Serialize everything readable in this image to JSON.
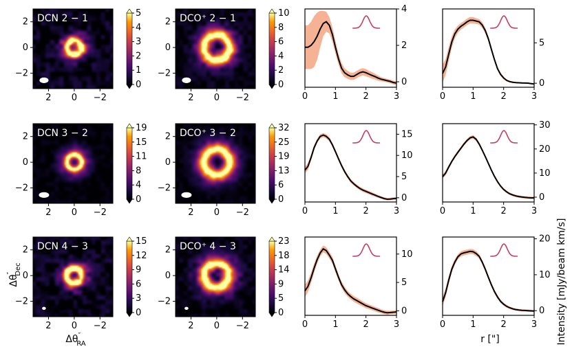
{
  "figure": {
    "x_label_radial": "r [\"]",
    "y_label_radial": "Intensity [mJy/beam km/s]"
  },
  "colors": {
    "background": "#000004",
    "curve": "#000000",
    "band": "#f4a582",
    "line_profile": "#c23e63"
  },
  "chart_data": [
    {
      "type": "heatmap",
      "molecule": "DCN",
      "transition": "2 − 1",
      "title": "DCN 2 − 1",
      "xlabel": "",
      "ylabel": "",
      "xlim": [
        3.2,
        -3.0
      ],
      "ylim": [
        -3.2,
        3.0
      ],
      "xticks": [
        "2",
        "0",
        "−2"
      ],
      "yticks": [
        "2",
        "0",
        "−2"
      ],
      "colorbar": {
        "ticks": [
          "0",
          "1",
          "2",
          "3",
          "4",
          "5"
        ],
        "min": 0,
        "max": 5
      },
      "structure": {
        "ring_radius": 0.55,
        "ring_width": 0.28,
        "disk_extent": 1.3,
        "hole_depth": 0.25,
        "noise": 0.32
      },
      "beam": {
        "major": 0.35,
        "minor": 0.22
      }
    },
    {
      "type": "heatmap",
      "molecule": "DCO+",
      "transition": "2 − 1",
      "title": "DCO⁺ 2 − 1",
      "xlabel": "",
      "ylabel": "",
      "xlim": [
        3.2,
        -3.0
      ],
      "ylim": [
        -3.2,
        3.0
      ],
      "xticks": [
        "2",
        "0",
        "−2"
      ],
      "yticks": [
        "2",
        "0",
        "−2"
      ],
      "colorbar": {
        "ticks": [
          "0",
          "2",
          "4",
          "6",
          "8",
          "10"
        ],
        "min": 0,
        "max": 10
      },
      "structure": {
        "ring_radius": 1.0,
        "ring_width": 0.42,
        "disk_extent": 1.9,
        "hole_depth": 0.9,
        "noise": 0.2
      },
      "beam": {
        "major": 0.35,
        "minor": 0.22
      }
    },
    {
      "type": "line",
      "molecule": "DCN",
      "transition": "2 − 1",
      "xlabel": "",
      "ylabel": "",
      "xlim": [
        0,
        3
      ],
      "ylim": [
        -0.3,
        4.0
      ],
      "xticks": [
        "0",
        "1",
        "2",
        "3"
      ],
      "yticks": [
        "0",
        "2",
        "4"
      ],
      "x": [
        0,
        0.1,
        0.2,
        0.3,
        0.4,
        0.5,
        0.6,
        0.7,
        0.8,
        0.9,
        1.0,
        1.1,
        1.2,
        1.3,
        1.4,
        1.5,
        1.6,
        1.7,
        1.8,
        1.9,
        2.0,
        2.1,
        2.2,
        2.3,
        2.4,
        2.5,
        2.6,
        2.7,
        2.8,
        2.9,
        3.0
      ],
      "y": [
        1.9,
        1.9,
        2.0,
        2.2,
        2.5,
        2.9,
        3.2,
        3.3,
        3.1,
        2.6,
        1.9,
        1.25,
        0.75,
        0.5,
        0.38,
        0.3,
        0.3,
        0.4,
        0.5,
        0.55,
        0.5,
        0.42,
        0.35,
        0.28,
        0.2,
        0.14,
        0.1,
        0.06,
        0.02,
        -0.04,
        -0.07
      ],
      "y_err": [
        1.2,
        1.2,
        1.3,
        1.4,
        1.3,
        1.0,
        0.7,
        0.55,
        0.45,
        0.4,
        0.35,
        0.3,
        0.28,
        0.25,
        0.22,
        0.2,
        0.2,
        0.2,
        0.2,
        0.2,
        0.2,
        0.18,
        0.18,
        0.16,
        0.14,
        0.12,
        0.1,
        0.1,
        0.1,
        0.1,
        0.1
      ]
    },
    {
      "type": "line",
      "molecule": "DCO+",
      "transition": "2 − 1",
      "xlabel": "",
      "ylabel": "",
      "xlim": [
        0,
        3
      ],
      "ylim": [
        -0.5,
        9.2
      ],
      "xticks": [
        "0",
        "1",
        "2",
        "3"
      ],
      "yticks": [
        "0",
        "5"
      ],
      "x": [
        0,
        0.1,
        0.2,
        0.3,
        0.4,
        0.5,
        0.6,
        0.7,
        0.8,
        0.9,
        1.0,
        1.1,
        1.2,
        1.3,
        1.4,
        1.5,
        1.6,
        1.7,
        1.8,
        1.9,
        2.0,
        2.1,
        2.2,
        2.3,
        2.4,
        2.5,
        2.6,
        2.7,
        2.8,
        2.9,
        3.0
      ],
      "y": [
        1.2,
        2.0,
        3.6,
        5.1,
        6.1,
        6.7,
        7.05,
        7.3,
        7.6,
        7.8,
        7.8,
        7.7,
        7.6,
        7.2,
        6.5,
        5.5,
        4.2,
        2.9,
        1.8,
        1.1,
        0.65,
        0.35,
        0.2,
        0.12,
        0.08,
        0.05,
        0.03,
        0.02,
        0.01,
        -0.05,
        -0.1
      ],
      "y_err": [
        1.1,
        1.0,
        0.9,
        0.7,
        0.55,
        0.45,
        0.4,
        0.4,
        0.4,
        0.4,
        0.4,
        0.35,
        0.35,
        0.35,
        0.35,
        0.3,
        0.3,
        0.25,
        0.2,
        0.2,
        0.15,
        0.12,
        0.1,
        0.1,
        0.08,
        0.08,
        0.08,
        0.08,
        0.08,
        0.08,
        0.08
      ]
    },
    {
      "type": "heatmap",
      "molecule": "DCN",
      "transition": "3 − 2",
      "title": "DCN 3 − 2",
      "xlabel": "",
      "ylabel": "",
      "xlim": [
        3.2,
        -3.0
      ],
      "ylim": [
        -3.2,
        3.0
      ],
      "xticks": [
        "2",
        "0",
        "−2"
      ],
      "yticks": [
        "2",
        "0",
        "−2"
      ],
      "colorbar": {
        "ticks": [
          "0",
          "4",
          "8",
          "11",
          "15",
          "19"
        ],
        "min": 0,
        "max": 19
      },
      "structure": {
        "ring_radius": 0.58,
        "ring_width": 0.25,
        "disk_extent": 1.4,
        "hole_depth": 0.55,
        "noise": 0.12
      },
      "beam": {
        "major": 0.4,
        "minor": 0.22
      }
    },
    {
      "type": "heatmap",
      "molecule": "DCO+",
      "transition": "3 − 2",
      "title": "DCO⁺ 3 − 2",
      "xlabel": "",
      "ylabel": "",
      "xlim": [
        3.2,
        -3.0
      ],
      "ylim": [
        -3.2,
        3.0
      ],
      "xticks": [
        "2",
        "0",
        "−2"
      ],
      "yticks": [
        "2",
        "0",
        "−2"
      ],
      "colorbar": {
        "ticks": [
          "0",
          "6",
          "13",
          "19",
          "25",
          "32"
        ],
        "min": 0,
        "max": 32
      },
      "structure": {
        "ring_radius": 1.0,
        "ring_width": 0.45,
        "disk_extent": 2.0,
        "hole_depth": 0.75,
        "noise": 0.12
      },
      "beam": {
        "major": 0.4,
        "minor": 0.22
      }
    },
    {
      "type": "line",
      "molecule": "DCN",
      "transition": "3 − 2",
      "xlabel": "",
      "ylabel": "",
      "xlim": [
        0,
        3
      ],
      "ylim": [
        -1.0,
        17.5
      ],
      "xticks": [
        "0",
        "1",
        "2",
        "3"
      ],
      "yticks": [
        "0",
        "5",
        "10",
        "15"
      ],
      "x": [
        0,
        0.1,
        0.2,
        0.3,
        0.4,
        0.5,
        0.6,
        0.7,
        0.8,
        0.9,
        1.0,
        1.1,
        1.2,
        1.3,
        1.4,
        1.5,
        1.6,
        1.7,
        1.8,
        1.9,
        2.0,
        2.1,
        2.2,
        2.3,
        2.4,
        2.5,
        2.6,
        2.7,
        2.8,
        2.9,
        3.0
      ],
      "y": [
        6.5,
        7.4,
        9.5,
        11.8,
        13.4,
        14.5,
        14.8,
        14.5,
        13.8,
        12.5,
        10.9,
        9.2,
        7.6,
        6.2,
        5.0,
        4.0,
        3.3,
        2.7,
        2.2,
        1.8,
        1.5,
        1.2,
        0.9,
        0.6,
        0.3,
        0.05,
        -0.2,
        -0.35,
        -0.3,
        -0.2,
        -0.15
      ],
      "y_err": [
        0.8,
        0.8,
        0.7,
        0.6,
        0.5,
        0.5,
        0.5,
        0.5,
        0.5,
        0.45,
        0.45,
        0.45,
        0.45,
        0.45,
        0.45,
        0.4,
        0.4,
        0.4,
        0.4,
        0.4,
        0.4,
        0.4,
        0.4,
        0.35,
        0.35,
        0.3,
        0.3,
        0.3,
        0.3,
        0.3,
        0.3
      ]
    },
    {
      "type": "line",
      "molecule": "DCO+",
      "transition": "3 − 2",
      "xlabel": "",
      "ylabel": "",
      "xlim": [
        0,
        3
      ],
      "ylim": [
        -2.0,
        30.5
      ],
      "xticks": [
        "0",
        "1",
        "2",
        "3"
      ],
      "yticks": [
        "0",
        "10",
        "20",
        "30"
      ],
      "x": [
        0,
        0.1,
        0.2,
        0.3,
        0.4,
        0.5,
        0.6,
        0.7,
        0.8,
        0.9,
        1.0,
        1.1,
        1.2,
        1.3,
        1.4,
        1.5,
        1.6,
        1.7,
        1.8,
        1.9,
        2.0,
        2.1,
        2.2,
        2.3,
        2.4,
        2.5,
        2.6,
        2.7,
        2.8,
        2.9,
        3.0
      ],
      "y": [
        8.5,
        10.0,
        12.5,
        14.8,
        16.8,
        18.6,
        20.3,
        22.0,
        23.5,
        24.6,
        25.0,
        24.0,
        22.0,
        19.5,
        16.8,
        14.0,
        11.2,
        8.6,
        6.4,
        4.6,
        3.2,
        2.2,
        1.4,
        0.9,
        0.5,
        0.25,
        0.05,
        -0.1,
        -0.2,
        -0.3,
        -0.3
      ],
      "y_err": [
        0.9,
        0.9,
        0.8,
        0.7,
        0.7,
        0.7,
        0.7,
        0.7,
        0.7,
        0.7,
        0.7,
        0.7,
        0.7,
        0.7,
        0.6,
        0.6,
        0.6,
        0.6,
        0.6,
        0.5,
        0.5,
        0.5,
        0.5,
        0.5,
        0.5,
        0.5,
        0.5,
        0.5,
        0.5,
        0.5,
        0.5
      ]
    },
    {
      "type": "heatmap",
      "molecule": "DCN",
      "transition": "4 − 3",
      "title": "DCN 4 − 3",
      "xlabel": "Δθ″RA",
      "ylabel": "Δθ″Dec",
      "xlim": [
        3.2,
        -3.0
      ],
      "ylim": [
        -3.2,
        3.0
      ],
      "xticks": [
        "2",
        "0",
        "−2"
      ],
      "yticks": [
        "2",
        "0",
        "−2"
      ],
      "colorbar": {
        "ticks": [
          "0",
          "3",
          "6",
          "9",
          "12",
          "15"
        ],
        "min": 0,
        "max": 15
      },
      "structure": {
        "ring_radius": 0.58,
        "ring_width": 0.28,
        "disk_extent": 1.3,
        "hole_depth": 0.55,
        "noise": 0.3
      },
      "beam": {
        "major": 0.15,
        "minor": 0.12
      }
    },
    {
      "type": "heatmap",
      "molecule": "DCO+",
      "transition": "4 − 3",
      "title": "DCO⁺ 4 − 3",
      "xlabel": "",
      "ylabel": "",
      "xlim": [
        3.2,
        -3.0
      ],
      "ylim": [
        -3.2,
        3.0
      ],
      "xticks": [
        "2",
        "0",
        "−2"
      ],
      "yticks": [
        "2",
        "0",
        "−2"
      ],
      "colorbar": {
        "ticks": [
          "0",
          "5",
          "9",
          "14",
          "18",
          "23"
        ],
        "min": 0,
        "max": 23
      },
      "structure": {
        "ring_radius": 0.95,
        "ring_width": 0.42,
        "disk_extent": 1.9,
        "hole_depth": 0.85,
        "noise": 0.22
      },
      "beam": {
        "major": 0.15,
        "minor": 0.12
      }
    },
    {
      "type": "line",
      "molecule": "DCN",
      "transition": "4 − 3",
      "xlabel": "",
      "ylabel": "",
      "xlim": [
        0,
        3
      ],
      "ylim": [
        -0.8,
        13.0
      ],
      "xticks": [
        "0",
        "1",
        "2",
        "3"
      ],
      "yticks": [
        "0",
        "5",
        "10"
      ],
      "x": [
        0,
        0.1,
        0.2,
        0.3,
        0.4,
        0.5,
        0.6,
        0.7,
        0.8,
        0.9,
        1.0,
        1.1,
        1.2,
        1.3,
        1.4,
        1.5,
        1.6,
        1.7,
        1.8,
        1.9,
        2.0,
        2.1,
        2.2,
        2.3,
        2.4,
        2.5,
        2.6,
        2.7,
        2.8,
        2.9,
        3.0
      ],
      "y": [
        3.5,
        4.3,
        5.8,
        7.5,
        9.0,
        10.2,
        10.9,
        10.6,
        9.8,
        8.9,
        7.4,
        5.9,
        4.6,
        3.7,
        3.0,
        2.5,
        2.1,
        1.8,
        1.5,
        1.2,
        0.9,
        0.7,
        0.5,
        0.3,
        0.1,
        -0.1,
        -0.25,
        -0.35,
        -0.3,
        -0.25,
        -0.2
      ],
      "y_err": [
        1.1,
        1.0,
        0.9,
        0.8,
        0.7,
        0.6,
        0.6,
        0.6,
        0.6,
        0.6,
        0.6,
        0.55,
        0.55,
        0.55,
        0.5,
        0.5,
        0.5,
        0.5,
        0.5,
        0.45,
        0.45,
        0.4,
        0.4,
        0.4,
        0.4,
        0.35,
        0.35,
        0.35,
        0.3,
        0.3,
        0.3
      ]
    },
    {
      "type": "line",
      "molecule": "DCO+",
      "transition": "4 − 3",
      "xlabel": "",
      "ylabel": "",
      "xlim": [
        0,
        3
      ],
      "ylim": [
        -1.3,
        20.5
      ],
      "xticks": [
        "0",
        "1",
        "2",
        "3"
      ],
      "yticks": [
        "0",
        "10",
        "20"
      ],
      "x": [
        0,
        0.1,
        0.2,
        0.3,
        0.4,
        0.5,
        0.6,
        0.7,
        0.8,
        0.9,
        1.0,
        1.1,
        1.2,
        1.3,
        1.4,
        1.5,
        1.6,
        1.7,
        1.8,
        1.9,
        2.0,
        2.1,
        2.2,
        2.3,
        2.4,
        2.5,
        2.6,
        2.7,
        2.8,
        2.9,
        3.0
      ],
      "y": [
        2.5,
        5.0,
        8.5,
        11.5,
        13.5,
        15.0,
        15.8,
        16.1,
        16.3,
        16.5,
        16.4,
        15.9,
        15.1,
        13.5,
        11.5,
        9.3,
        7.2,
        5.3,
        3.8,
        2.6,
        1.8,
        1.2,
        0.8,
        0.5,
        0.3,
        0.2,
        0.1,
        0.05,
        0.0,
        -0.05,
        -0.1
      ],
      "y_err": [
        1.3,
        1.2,
        1.1,
        0.9,
        0.8,
        0.7,
        0.7,
        0.7,
        0.7,
        0.7,
        0.7,
        0.7,
        0.6,
        0.6,
        0.6,
        0.6,
        0.5,
        0.5,
        0.5,
        0.45,
        0.4,
        0.4,
        0.35,
        0.35,
        0.3,
        0.3,
        0.3,
        0.3,
        0.3,
        0.3,
        0.3
      ]
    }
  ]
}
